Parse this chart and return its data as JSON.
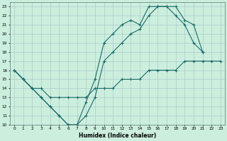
{
  "xlabel": "Humidex (Indice chaleur)",
  "bg_color": "#cceedd",
  "grid_color": "#aacccc",
  "line_color": "#1a6b6b",
  "xlim": [
    -0.5,
    23.5
  ],
  "ylim": [
    10,
    23.5
  ],
  "xticks": [
    0,
    1,
    2,
    3,
    4,
    5,
    6,
    7,
    8,
    9,
    10,
    11,
    12,
    13,
    14,
    15,
    16,
    17,
    18,
    19,
    20,
    21,
    22,
    23
  ],
  "yticks": [
    10,
    11,
    12,
    13,
    14,
    15,
    16,
    17,
    18,
    19,
    20,
    21,
    22,
    23
  ],
  "line1_x": [
    0,
    1,
    2,
    3,
    4,
    5,
    6,
    7,
    8,
    9,
    10,
    11,
    12,
    13,
    14,
    15,
    16,
    17,
    18,
    19,
    20,
    21
  ],
  "line1_y": [
    16,
    15,
    14,
    13,
    12,
    11,
    10,
    10,
    12.5,
    15,
    19,
    20,
    21,
    21.5,
    21,
    23,
    23,
    23,
    22,
    21,
    19,
    18
  ],
  "line2_x": [
    0,
    1,
    2,
    3,
    4,
    5,
    6,
    7,
    8,
    9,
    10,
    11,
    12,
    13,
    14,
    15,
    16,
    17,
    18,
    19,
    20,
    21
  ],
  "line2_y": [
    16,
    15,
    14,
    13,
    12,
    11,
    10,
    10,
    11,
    13,
    17,
    18,
    19,
    20,
    20.5,
    22,
    23,
    23,
    23,
    21.5,
    21,
    18
  ],
  "line3_x": [
    0,
    1,
    2,
    3,
    4,
    5,
    6,
    7,
    8,
    9,
    10,
    11,
    12,
    13,
    14,
    15,
    16,
    17,
    18,
    19,
    20,
    21,
    22,
    23
  ],
  "line3_y": [
    16,
    15,
    14,
    14,
    13,
    13,
    13,
    13,
    13,
    14,
    14,
    14,
    15,
    15,
    15,
    16,
    16,
    16,
    16,
    17,
    17,
    17,
    17,
    17
  ]
}
